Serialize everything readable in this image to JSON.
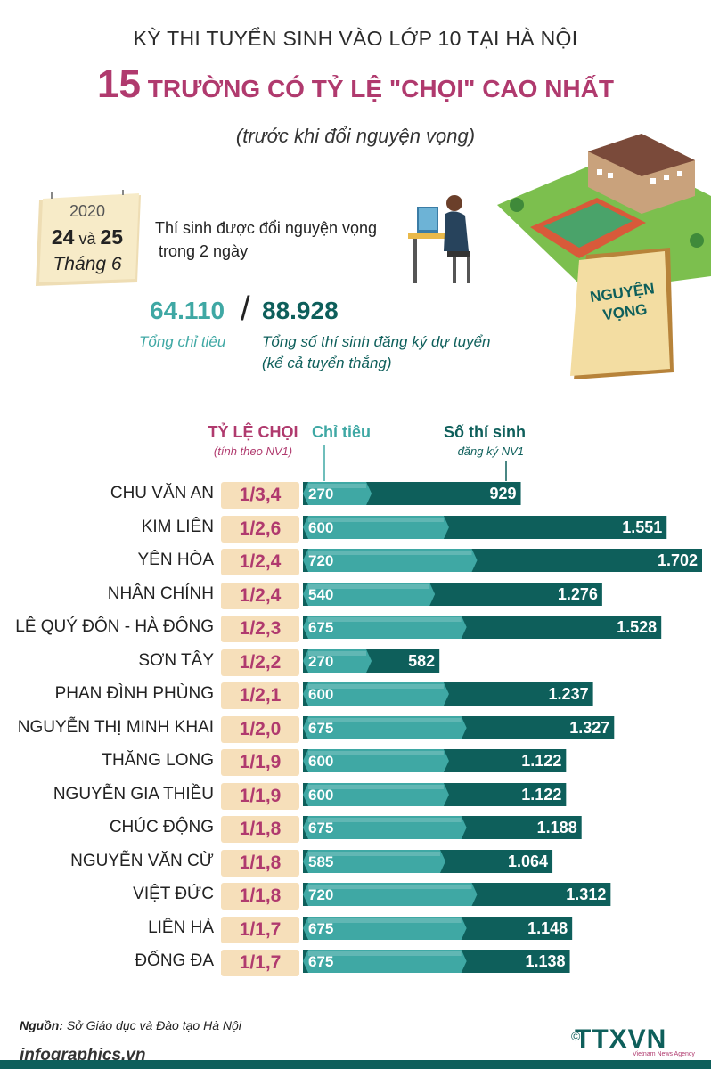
{
  "header": {
    "title_line1": "KỲ THI TUYỂN SINH VÀO LỚP 10 TẠI HÀ NỘI",
    "title_num": "15",
    "title_line2": " TRƯỜNG CÓ TỶ LỆ \"CHỌI\" CAO NHẤT",
    "subtitle": "(trước khi đổi nguyện vọng)"
  },
  "calendar": {
    "year": "2020",
    "day1": "24",
    "conj": " và ",
    "day2": "25",
    "month": "Tháng 6",
    "note_line1": "Thí sinh được đổi nguyện vọng",
    "note_line2": "trong 2 ngày"
  },
  "stamp": {
    "line1": "NGUYỆN",
    "line2": "VỌNG"
  },
  "totals": {
    "quota": "64.110",
    "slash": "/",
    "registered": "88.928",
    "quota_label": "Tổng chỉ tiêu",
    "registered_label_line1": "Tổng số thí sinh đăng ký dự tuyển",
    "registered_label_line2": "(kể cả tuyển thẳng)"
  },
  "chart_headers": {
    "ratio": "TỶ LỆ CHỌI",
    "ratio_sub": "(tính theo NV1)",
    "quota": "Chỉ tiêu",
    "registered": "Số thí sinh",
    "registered_sub": "đăng ký NV1"
  },
  "chart_data": {
    "type": "bar",
    "categories": [
      "CHU VĂN AN",
      "KIM LIÊN",
      "YÊN HÒA",
      "NHÂN CHÍNH",
      "LÊ QUÝ ĐÔN - HÀ ĐÔNG",
      "SƠN TÂY",
      "PHAN ĐÌNH PHÙNG",
      "NGUYỄN THỊ MINH KHAI",
      "THĂNG LONG",
      "NGUYỄN GIA THIỀU",
      "CHÚC ĐỘNG",
      "NGUYỄN VĂN CỪ",
      "VIỆT ĐỨC",
      "LIÊN HÀ",
      "ĐỐNG ĐA"
    ],
    "ratio_labels": [
      "1/3,4",
      "1/2,6",
      "1/2,4",
      "1/2,4",
      "1/2,3",
      "1/2,2",
      "1/2,1",
      "1/2,0",
      "1/1,9",
      "1/1,9",
      "1/1,8",
      "1/1,8",
      "1/1,8",
      "1/1,7",
      "1/1,7"
    ],
    "series": [
      {
        "name": "Chỉ tiêu",
        "values": [
          270,
          600,
          720,
          540,
          675,
          270,
          600,
          675,
          600,
          600,
          675,
          585,
          720,
          675,
          675
        ],
        "labels": [
          "270",
          "600",
          "720",
          "540",
          "675",
          "270",
          "600",
          "675",
          "600",
          "600",
          "675",
          "585",
          "720",
          "675",
          "675"
        ],
        "color": "#3fa8a4"
      },
      {
        "name": "Số thí sinh",
        "values": [
          929,
          1551,
          1702,
          1276,
          1528,
          582,
          1237,
          1327,
          1122,
          1122,
          1188,
          1064,
          1312,
          1148,
          1138
        ],
        "labels": [
          "929",
          "1.551",
          "1.702",
          "1.276",
          "1.528",
          "582",
          "1.237",
          "1.327",
          "1.122",
          "1.122",
          "1.188",
          "1.064",
          "1.312",
          "1.148",
          "1.138"
        ],
        "color": "#0e5f5b"
      }
    ],
    "orientation": "horizontal",
    "xlim": [
      0,
      1702
    ]
  },
  "footer": {
    "source_label": "Nguồn:",
    "source_text": " Sở Giáo dục và Đào tạo Hà Nội",
    "website": "infographics.vn",
    "copyright": "©",
    "logo": "TTXVN",
    "logo_sub": "Vietnam News Agency"
  },
  "colors": {
    "accent": "#b03a6e",
    "teal": "#3fa8a4",
    "dark_teal": "#0e5f5b",
    "ratio_bg": "#f6dfba"
  }
}
